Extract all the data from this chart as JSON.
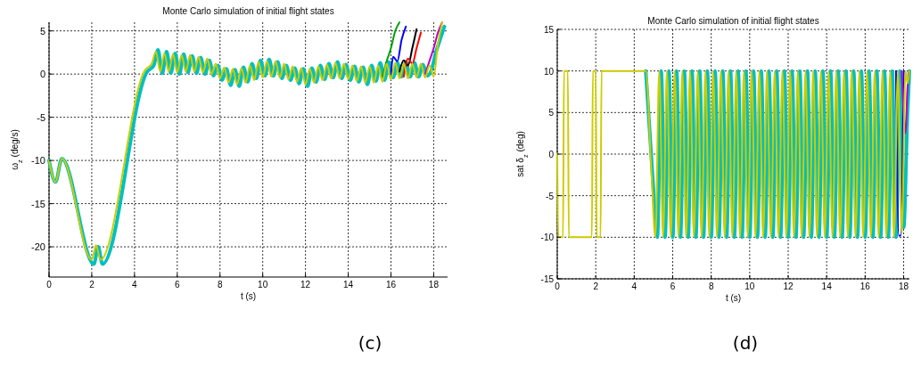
{
  "chart_data": [
    {
      "type": "line",
      "title": "Monte Carlo simulation of initial flight states",
      "xlabel": "t (s)",
      "ylabel": "ω$_{z}$ (deg/s)",
      "xlim": [
        0,
        18.65
      ],
      "ylim": [
        -23.5,
        6
      ],
      "xticks": [
        0,
        2,
        4,
        6,
        8,
        10,
        12,
        14,
        16,
        18
      ],
      "yticks": [
        -20,
        -15,
        -10,
        -5,
        0,
        5
      ],
      "grid": true,
      "marker": "none",
      "line_style": "solid",
      "annotations": [
        "(c)"
      ],
      "series": [
        {
          "color": "#00bfbf",
          "x": [
            0,
            0.3,
            0.6,
            2.1,
            2.3,
            2.5,
            4.6,
            4.9,
            5.1,
            5.3,
            5.5,
            5.7,
            5.9,
            6.1,
            6.3,
            6.5,
            6.7,
            6.9,
            7.1,
            7.3,
            7.5,
            7.7,
            7.9,
            8.1,
            8.3,
            8.5,
            8.7,
            8.9,
            9.1,
            9.3,
            9.5,
            9.7,
            9.9,
            10.1,
            10.3,
            10.5,
            10.7,
            10.9,
            11.1,
            11.3,
            11.5,
            11.7,
            11.9,
            12.1,
            12.3,
            12.5,
            12.7,
            12.9,
            13.1,
            13.3,
            13.5,
            13.7,
            13.9,
            14.1,
            14.3,
            14.5,
            14.7,
            14.9,
            15.1,
            15.3,
            15.5,
            15.7,
            15.9,
            16.1,
            16.3,
            16.5,
            16.7,
            16.9,
            17.1,
            17.3,
            17.5,
            17.7,
            17.9,
            18.1,
            18.3,
            18.5
          ],
          "values": [
            -10,
            -12.5,
            -9.8,
            -22,
            -20,
            -22,
            0.3,
            1.0,
            2.8,
            0.1,
            2.6,
            0.1,
            2.4,
            0,
            2.3,
            0.2,
            2.1,
            0.1,
            1.9,
            0,
            1.6,
            -0.2,
            1.0,
            -0.7,
            0.6,
            -1.3,
            0.5,
            -1.4,
            0.8,
            -0.9,
            1.2,
            -0.5,
            1.6,
            -0.2,
            1.7,
            -0.2,
            1.4,
            -0.5,
            1.0,
            -0.7,
            0.7,
            -1.1,
            0.6,
            -1.4,
            0.7,
            -0.9,
            1.0,
            -0.6,
            1.2,
            -0.4,
            1.4,
            -0.5,
            1.1,
            -0.7,
            0.9,
            -0.9,
            0.8,
            -1.2,
            1.0,
            -0.8,
            1.3,
            -0.7,
            1.4,
            -0.4,
            1.3,
            -0.3,
            1.4,
            -0.3,
            1.3,
            -0.3,
            1.1,
            -0.2,
            0.5,
            2.5,
            4,
            5.5
          ]
        },
        {
          "color": "#00a000",
          "x": [
            15.6,
            15.8,
            16.0,
            16.2,
            16.4
          ],
          "values": [
            -0.3,
            1.5,
            3,
            5,
            6
          ]
        },
        {
          "color": "#0000ff",
          "x": [
            16.0,
            16.1,
            16.3,
            16.5,
            16.7
          ],
          "values": [
            0,
            2,
            1.5,
            4,
            5.5
          ]
        },
        {
          "color": "#000000",
          "x": [
            16.4,
            16.6,
            16.8,
            17.0,
            17.2
          ],
          "values": [
            0.3,
            1.6,
            1.0,
            3,
            5.2
          ]
        },
        {
          "color": "#ff0000",
          "x": [
            16.6,
            16.8,
            17.0,
            17.2,
            17.4
          ],
          "values": [
            -0.3,
            1.8,
            1.2,
            3,
            4.8
          ]
        },
        {
          "color": "#bf00bf",
          "x": [
            17.6,
            17.8,
            18.0,
            18.2,
            18.4
          ],
          "values": [
            0,
            1.5,
            3,
            4.8,
            6
          ]
        },
        {
          "color": "#cccc00",
          "x": [
            0,
            0.3,
            0.6,
            2.0,
            2.2,
            2.4,
            4.5,
            4.8,
            5.0,
            5.2,
            5.4,
            5.6,
            5.8,
            6.0,
            6.2,
            6.4,
            6.6,
            6.8,
            7.0,
            7.2,
            7.4,
            7.6,
            7.8,
            8.0,
            8.2,
            8.4,
            8.6,
            8.8,
            9.0,
            9.2,
            9.4,
            9.6,
            9.8,
            10.0,
            10.2,
            10.4,
            10.6,
            10.8,
            11.0,
            11.2,
            11.4,
            11.6,
            11.8,
            12.0,
            12.2,
            12.4,
            12.6,
            12.8,
            13.0,
            13.2,
            13.4,
            13.6,
            13.8,
            14.0,
            14.2,
            14.4,
            14.6,
            14.8,
            15.0,
            15.2,
            15.4,
            15.6,
            15.8,
            16.0,
            16.2,
            16.4,
            16.6,
            16.8,
            17.0,
            17.2,
            17.4,
            17.6,
            17.8,
            18.0,
            18.2,
            18.4
          ],
          "values": [
            -10,
            -12.5,
            -9.8,
            -21.5,
            -19.8,
            -21.5,
            0.5,
            1.2,
            2.6,
            0.3,
            2.4,
            0.3,
            2.3,
            0.2,
            2.2,
            0.3,
            2.2,
            0.3,
            2.0,
            0.2,
            1.8,
            0,
            1.2,
            -0.5,
            0.8,
            -1.0,
            0.6,
            -1.2,
            0.7,
            -1.0,
            1.0,
            -0.7,
            1.4,
            -0.4,
            1.5,
            -0.3,
            1.5,
            -0.4,
            1.2,
            -0.6,
            0.9,
            -0.9,
            0.7,
            -1.2,
            0.6,
            -1.0,
            0.9,
            -0.7,
            1.1,
            -0.5,
            1.3,
            -0.5,
            1.2,
            -0.6,
            1.0,
            -0.8,
            0.9,
            -1.0,
            0.9,
            -1.0,
            1.0,
            -0.9,
            1.2,
            -0.6,
            1.3,
            -0.5,
            1.2,
            -0.5,
            1.2,
            -0.4,
            1.2,
            -0.4,
            1.0,
            -0.3,
            3.5,
            6
          ]
        }
      ]
    },
    {
      "type": "line",
      "title": "Monte Carlo simulation of initial flight states",
      "xlabel": "t (s)",
      "ylabel": "sat δ$_{z}$ (deg)",
      "xlim": [
        0,
        18.3
      ],
      "ylim": [
        -15,
        15
      ],
      "xticks": [
        0,
        2,
        4,
        6,
        8,
        10,
        12,
        14,
        16,
        18
      ],
      "yticks": [
        -15,
        -10,
        -5,
        0,
        5,
        10,
        15
      ],
      "grid": true,
      "marker": "none",
      "line_style": "solid",
      "annotations": [
        "(d)"
      ],
      "series": [
        {
          "color": "#00bfbf",
          "x": [
            4.6,
            4.95,
            5.2,
            5.4,
            5.6,
            5.8,
            6.0,
            6.2,
            6.4,
            6.6,
            6.8,
            7.0,
            7.2,
            7.4,
            7.6,
            7.8,
            8.0,
            8.2,
            8.4,
            8.6,
            8.8,
            9.0,
            9.2,
            9.4,
            9.6,
            9.8,
            10.0,
            10.2,
            10.4,
            10.6,
            10.8,
            11.0,
            11.2,
            11.4,
            11.6,
            11.8,
            12.0,
            12.2,
            12.4,
            12.6,
            12.8,
            13.0,
            13.2,
            13.4,
            13.6,
            13.8,
            14.0,
            14.2,
            14.4,
            14.6,
            14.8,
            15.0,
            15.2,
            15.4,
            15.6,
            15.8,
            16.0,
            16.2,
            16.4,
            16.6,
            16.8,
            17.0,
            17.2,
            17.4,
            17.6,
            17.8,
            18.0,
            18.2,
            18.3
          ],
          "values": [
            10,
            -2.5,
            -10,
            10,
            -10,
            10,
            -10,
            10,
            -10,
            10,
            -10,
            10,
            -10,
            10,
            -10,
            10,
            -10,
            10,
            -10,
            10,
            -10,
            10,
            -10,
            10,
            -10,
            10,
            -10,
            10,
            -10,
            10,
            -10,
            10,
            -10,
            10,
            -10,
            10,
            -10,
            10,
            -10,
            10,
            -10,
            10,
            -10,
            10,
            -10,
            10,
            -10,
            10,
            -10,
            10,
            -10,
            10,
            -10,
            10,
            -10,
            10,
            -10,
            10,
            -10,
            10,
            -10,
            10,
            -10,
            10,
            -10,
            10,
            -8.8,
            5,
            10
          ]
        },
        {
          "color": "#0000ff",
          "x": [
            17.6,
            17.75,
            17.85,
            18.0
          ],
          "values": [
            10,
            -9.8,
            -9.8,
            10
          ]
        },
        {
          "color": "#bf00bf",
          "x": [
            17.9,
            18.0,
            18.1,
            18.2,
            18.3
          ],
          "values": [
            10,
            5,
            2.5,
            8,
            10
          ]
        },
        {
          "color": "#cccc00",
          "x": [
            0,
            0.05,
            0.3,
            0.35,
            0.55,
            0.6,
            1.8,
            1.85,
            2.0,
            2.05,
            2.25,
            2.3,
            4.6,
            4.9,
            5.1,
            5.3,
            5.5,
            5.7,
            5.9,
            6.1,
            6.3,
            6.5,
            6.7,
            6.9,
            7.1,
            7.3,
            7.5,
            7.7,
            7.9,
            8.1,
            8.3,
            8.5,
            8.7,
            8.9,
            9.1,
            9.3,
            9.5,
            9.7,
            9.9,
            10.1,
            10.3,
            10.5,
            10.7,
            10.9,
            11.1,
            11.3,
            11.5,
            11.7,
            11.9,
            12.1,
            12.3,
            12.5,
            12.7,
            12.9,
            13.1,
            13.3,
            13.5,
            13.7,
            13.9,
            14.1,
            14.3,
            14.5,
            14.7,
            14.9,
            15.1,
            15.3,
            15.5,
            15.7,
            15.9,
            16.1,
            16.3,
            16.5,
            16.7,
            16.9,
            17.1,
            17.3,
            17.5,
            17.7,
            17.9,
            18.1,
            18.2,
            18.3
          ],
          "values": [
            0,
            -10,
            -10,
            10,
            10,
            -10,
            -10,
            10,
            10,
            -10,
            -10,
            10,
            10,
            -2.5,
            -10,
            10,
            -10,
            10,
            -10,
            10,
            -10,
            10,
            -10,
            10,
            -10,
            10,
            -10,
            10,
            -10,
            10,
            -10,
            10,
            -10,
            10,
            -10,
            10,
            -10,
            10,
            -10,
            10,
            -10,
            10,
            -10,
            10,
            -10,
            10,
            -10,
            10,
            -10,
            10,
            -10,
            10,
            -10,
            10,
            -10,
            10,
            -10,
            10,
            -10,
            10,
            -10,
            10,
            -10,
            10,
            -10,
            10,
            -10,
            10,
            -10,
            10,
            -10,
            10,
            -10,
            10,
            -10,
            10,
            -10,
            10,
            -9.5,
            10,
            8.5,
            10
          ]
        }
      ]
    }
  ]
}
